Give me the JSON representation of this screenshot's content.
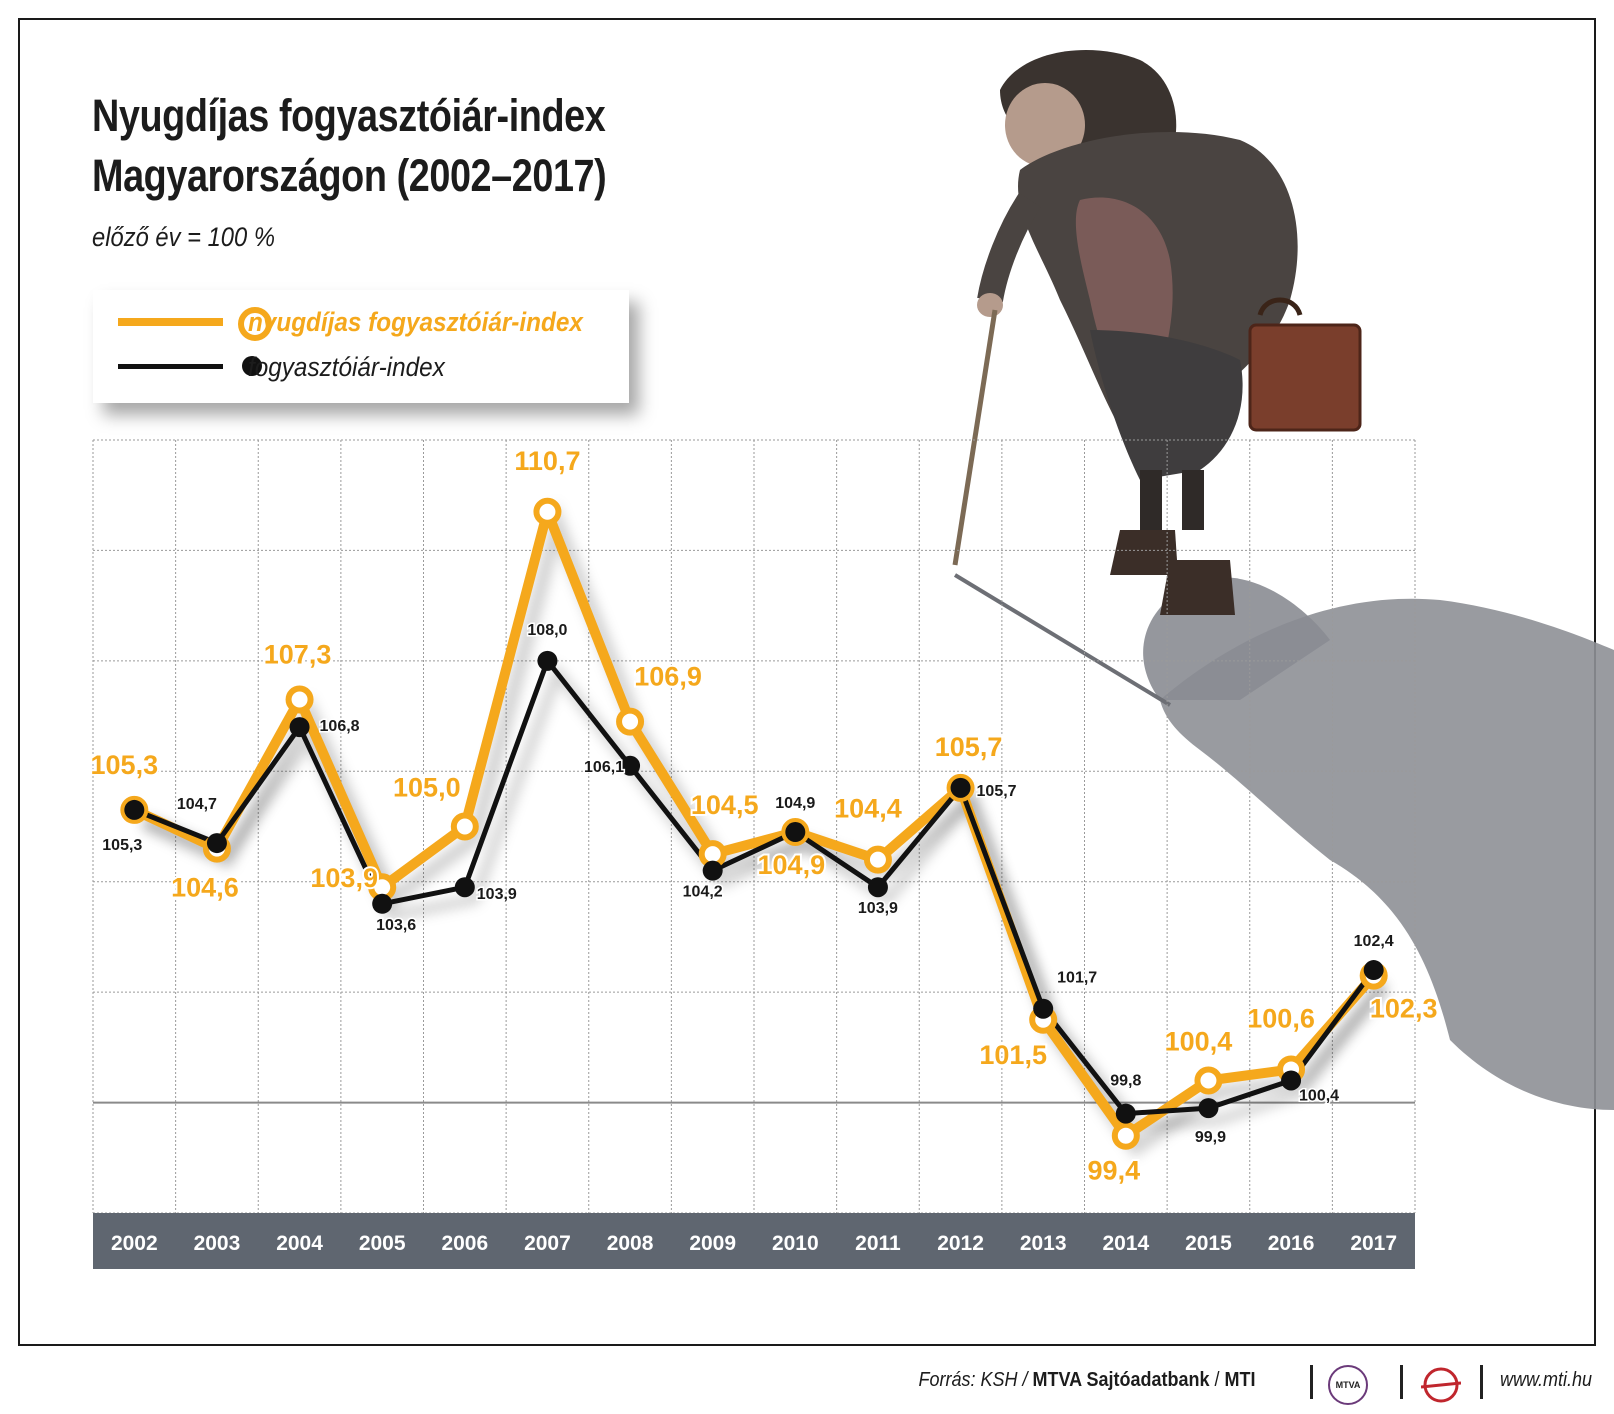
{
  "title_line1": "Nyugdíjas fogyasztóiár-index",
  "title_line2": "Magyarországon (2002–2017)",
  "subtitle": "előző év = 100 %",
  "legend": {
    "series1": "nyugdíjas fogyasztóiár-index",
    "series2": "fogyasztóiár-index"
  },
  "colors": {
    "pensioner": "#f5a81c",
    "cpi": "#111111",
    "axis_band": "#5f6670"
  },
  "chart_data": {
    "type": "line",
    "title": "Nyugdíjas fogyasztóiár-index Magyarországon (2002–2017)",
    "subtitle": "előző év = 100 %",
    "xlabel": "",
    "ylabel": "",
    "categories": [
      "2002",
      "2003",
      "2004",
      "2005",
      "2006",
      "2007",
      "2008",
      "2009",
      "2010",
      "2011",
      "2012",
      "2013",
      "2014",
      "2015",
      "2016",
      "2017"
    ],
    "series": [
      {
        "name": "nyugdíjas fogyasztóiár-index",
        "values": [
          105.3,
          104.6,
          107.3,
          103.9,
          105.0,
          110.7,
          106.9,
          104.5,
          104.9,
          104.4,
          105.7,
          101.5,
          99.4,
          100.4,
          100.6,
          102.3
        ],
        "labels": [
          "105,3",
          "104,6",
          "107,3",
          "103,9",
          "105,0",
          "110,7",
          "106,9",
          "104,5",
          "104,9",
          "104,4",
          "105,7",
          "101,5",
          "99,4",
          "100,4",
          "100,6",
          "102,3"
        ]
      },
      {
        "name": "fogyasztóiár-index",
        "values": [
          105.3,
          104.7,
          106.8,
          103.6,
          103.9,
          108.0,
          106.1,
          104.2,
          104.9,
          103.9,
          105.7,
          101.7,
          99.8,
          99.9,
          100.4,
          102.4
        ],
        "labels": [
          "105,3",
          "104,7",
          "106,8",
          "103,6",
          "103,9",
          "108,0",
          "106,1",
          "104,2",
          "104,9",
          "103,9",
          "105,7",
          "101,7",
          "99,8",
          "99,9",
          "100,4",
          "102,4"
        ]
      }
    ],
    "ylim": [
      98,
      112
    ],
    "reference_line": 100,
    "grid": true,
    "legend_position": "top-left"
  },
  "footer": {
    "source_prefix": "Forrás: KSH / ",
    "source_bold": "MTVA Sajtóadatbank",
    "source_mid": " / ",
    "source_end": "MTI",
    "mtva_logo_text": "MTVA",
    "website": "www.mti.hu"
  }
}
